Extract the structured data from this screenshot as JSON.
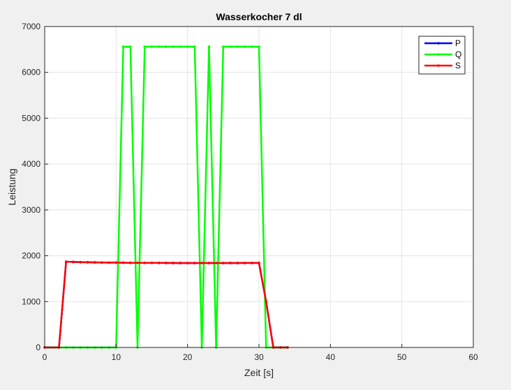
{
  "chart_data": {
    "type": "line",
    "title": "Wasserkocher 7 dl",
    "xlabel": "Zeit [s]",
    "ylabel": "Leistung",
    "xlim": [
      0,
      60
    ],
    "ylim": [
      0,
      7000
    ],
    "xticks": [
      0,
      10,
      20,
      30,
      40,
      50,
      60
    ],
    "yticks": [
      0,
      1000,
      2000,
      3000,
      4000,
      5000,
      6000,
      7000
    ],
    "grid": true,
    "legend_position": "top-right",
    "series": [
      {
        "name": "P",
        "color": "#0000ff",
        "marker": "dot",
        "x": [
          0,
          2,
          3,
          4,
          5,
          6,
          7,
          8,
          9,
          10,
          11,
          12,
          13,
          14,
          15,
          16,
          17,
          18,
          19,
          20,
          21,
          22,
          23,
          24,
          25,
          26,
          27,
          28,
          29,
          30,
          31,
          32,
          33,
          34
        ],
        "y": [
          0,
          0,
          1870,
          1865,
          1860,
          1858,
          1855,
          1852,
          1850,
          1850,
          1848,
          1846,
          1845,
          1845,
          1845,
          1844,
          1843,
          1842,
          1842,
          1841,
          1841,
          1841,
          1841,
          1841,
          1841,
          1842,
          1842,
          1843,
          1843,
          1843,
          1000,
          0,
          0,
          0
        ]
      },
      {
        "name": "Q",
        "color": "#00ff00",
        "marker": "dot",
        "x": [
          0,
          2,
          3,
          4,
          5,
          6,
          7,
          8,
          9,
          10,
          11,
          12,
          13,
          14,
          15,
          16,
          17,
          18,
          19,
          20,
          21,
          22,
          23,
          24,
          25,
          26,
          27,
          28,
          29,
          30,
          31,
          32,
          33,
          34
        ],
        "y": [
          0,
          0,
          0,
          0,
          0,
          0,
          0,
          0,
          0,
          0,
          6560,
          6560,
          0,
          6560,
          6560,
          6560,
          6560,
          6560,
          6560,
          6560,
          6560,
          0,
          6560,
          0,
          6560,
          6560,
          6560,
          6560,
          6560,
          6560,
          0,
          0,
          0,
          0
        ]
      },
      {
        "name": "S",
        "color": "#ff0000",
        "marker": "dot",
        "x": [
          0,
          2,
          3,
          4,
          5,
          6,
          7,
          8,
          9,
          10,
          11,
          12,
          13,
          14,
          15,
          16,
          17,
          18,
          19,
          20,
          21,
          22,
          23,
          24,
          25,
          26,
          27,
          28,
          29,
          30,
          31,
          32,
          33,
          34
        ],
        "y": [
          0,
          0,
          1870,
          1865,
          1860,
          1858,
          1855,
          1852,
          1850,
          1850,
          1848,
          1846,
          1845,
          1845,
          1845,
          1844,
          1843,
          1842,
          1842,
          1841,
          1841,
          1841,
          1841,
          1841,
          1841,
          1842,
          1842,
          1843,
          1843,
          1843,
          1000,
          0,
          0,
          0
        ]
      }
    ]
  }
}
